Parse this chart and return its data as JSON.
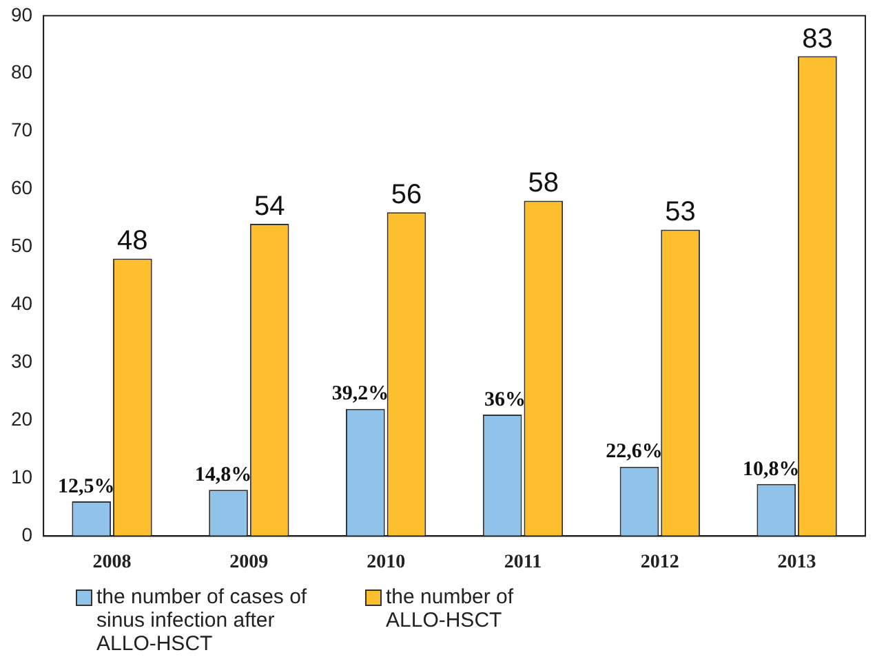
{
  "chart_data": {
    "type": "bar",
    "categories": [
      "2008",
      "2009",
      "2010",
      "2011",
      "2012",
      "2013"
    ],
    "series": [
      {
        "name": "the number of cases of sinus infection after ALLO-HSCT",
        "color": "#8fc3ea",
        "values": [
          6,
          8,
          22,
          21,
          12,
          9
        ]
      },
      {
        "name": "the number of ALLO-HSCT",
        "color": "#fdbf2d",
        "values": [
          48,
          54,
          56,
          58,
          53,
          83
        ],
        "value_labels": [
          "48",
          "54",
          "56",
          "58",
          "53",
          "83"
        ]
      }
    ],
    "annotations": [
      {
        "text": "12,5%",
        "x": "2008",
        "y": 6
      },
      {
        "text": "14,8%",
        "x": "2009",
        "y": 8
      },
      {
        "text": "39,2%",
        "x": "2010",
        "y": 22
      },
      {
        "text": "36%",
        "x": "2011",
        "y": 21
      },
      {
        "text": "22,6%",
        "x": "2012",
        "y": 12
      },
      {
        "text": "10,8%",
        "x": "2013",
        "y": 9
      }
    ],
    "ylim": [
      0,
      90
    ],
    "yticks": [
      0,
      10,
      20,
      30,
      40,
      50,
      60,
      70,
      80,
      90
    ],
    "grid": false,
    "legend": "bottom"
  }
}
